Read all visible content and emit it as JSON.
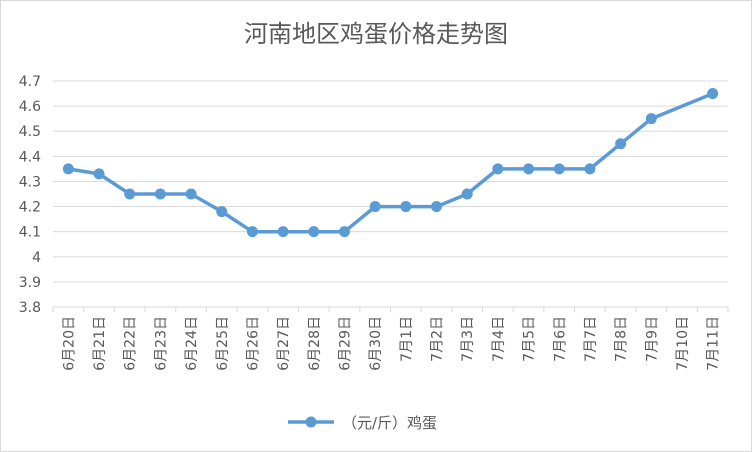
{
  "chart_data": {
    "type": "line",
    "title": "河南地区鸡蛋价格走势图",
    "xlabel": "",
    "ylabel": "",
    "categories": [
      "6月20日",
      "6月21日",
      "6月22日",
      "6月23日",
      "6月24日",
      "6月25日",
      "6月26日",
      "6月27日",
      "6月28日",
      "6月29日",
      "6月30日",
      "7月1日",
      "7月2日",
      "7月3日",
      "7月4日",
      "7月5日",
      "7月6日",
      "7月7日",
      "7月8日",
      "7月9日",
      "7月10日",
      "7月11日"
    ],
    "y_ticks": [
      "3.8",
      "3.9",
      "4",
      "4.1",
      "4.2",
      "4.3",
      "4.4",
      "4.5",
      "4.6",
      "4.7"
    ],
    "ylim": [
      3.8,
      4.7
    ],
    "grid": true,
    "legend_position": "bottom",
    "series": [
      {
        "name": "（元/斤）鸡蛋",
        "color": "#5b9bd5",
        "values": [
          4.35,
          4.33,
          4.25,
          4.25,
          4.25,
          4.18,
          4.1,
          4.1,
          4.1,
          4.1,
          4.2,
          4.2,
          4.2,
          4.25,
          4.35,
          4.35,
          4.35,
          4.35,
          4.45,
          4.55,
          null,
          4.65
        ]
      }
    ]
  },
  "colors": {
    "series": "#5b9bd5",
    "grid": "#d9d9d9",
    "text": "#595959"
  }
}
